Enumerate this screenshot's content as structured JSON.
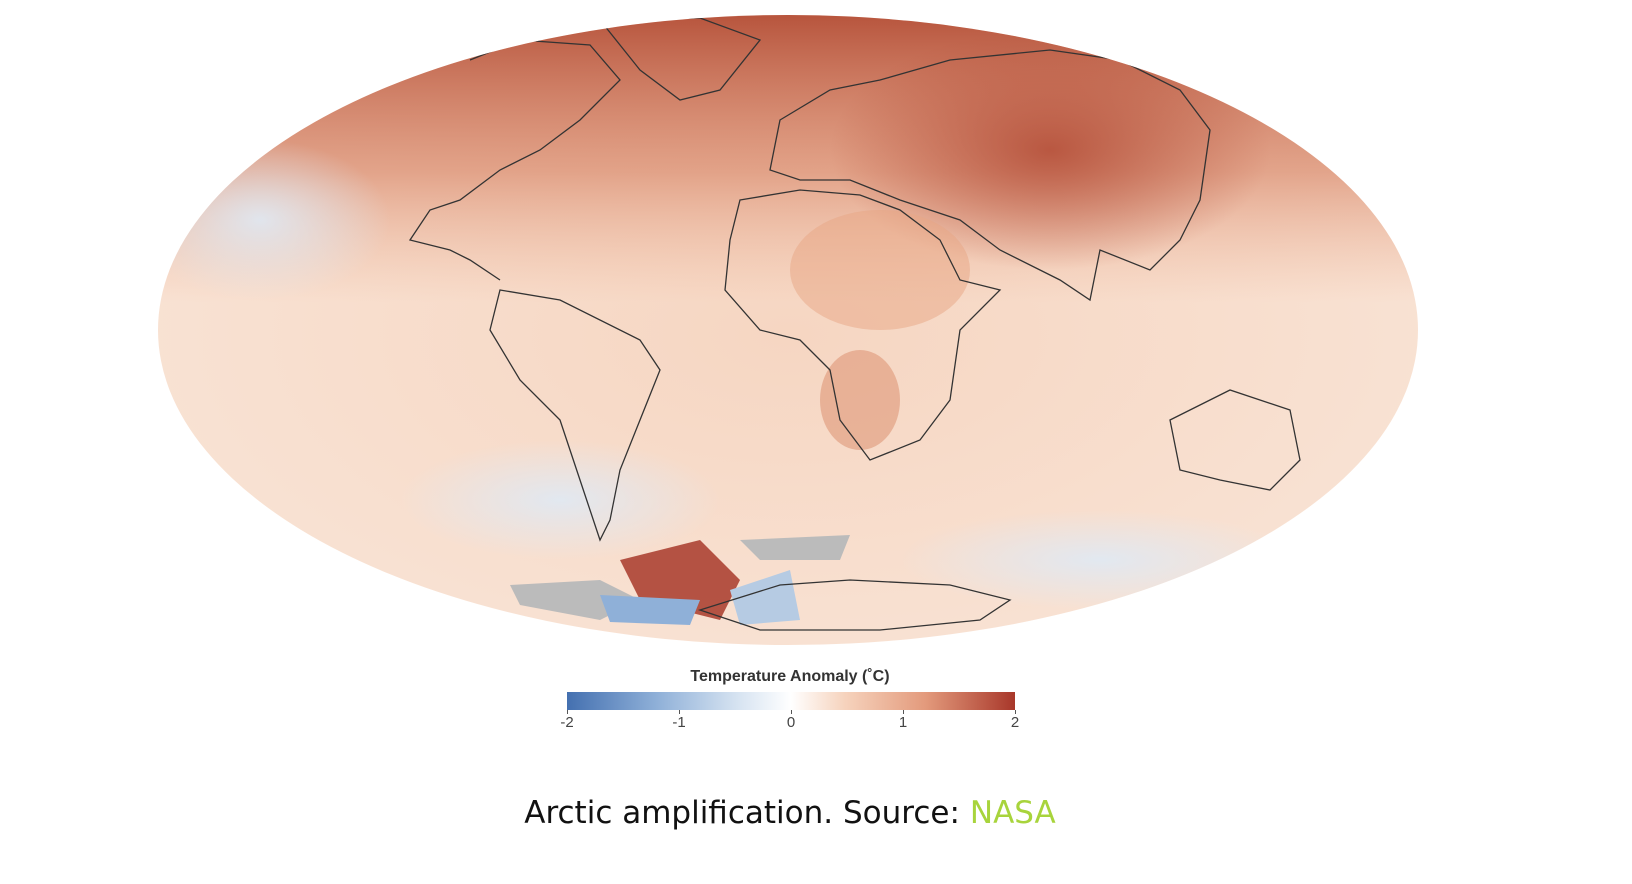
{
  "map": {
    "legend": {
      "title": "Temperature Anomaly (˚C)",
      "ticks": [
        -2,
        -1,
        0,
        1,
        2
      ]
    },
    "caption": {
      "text": "Arctic amplification. Source:",
      "link": "NASA"
    }
  }
}
